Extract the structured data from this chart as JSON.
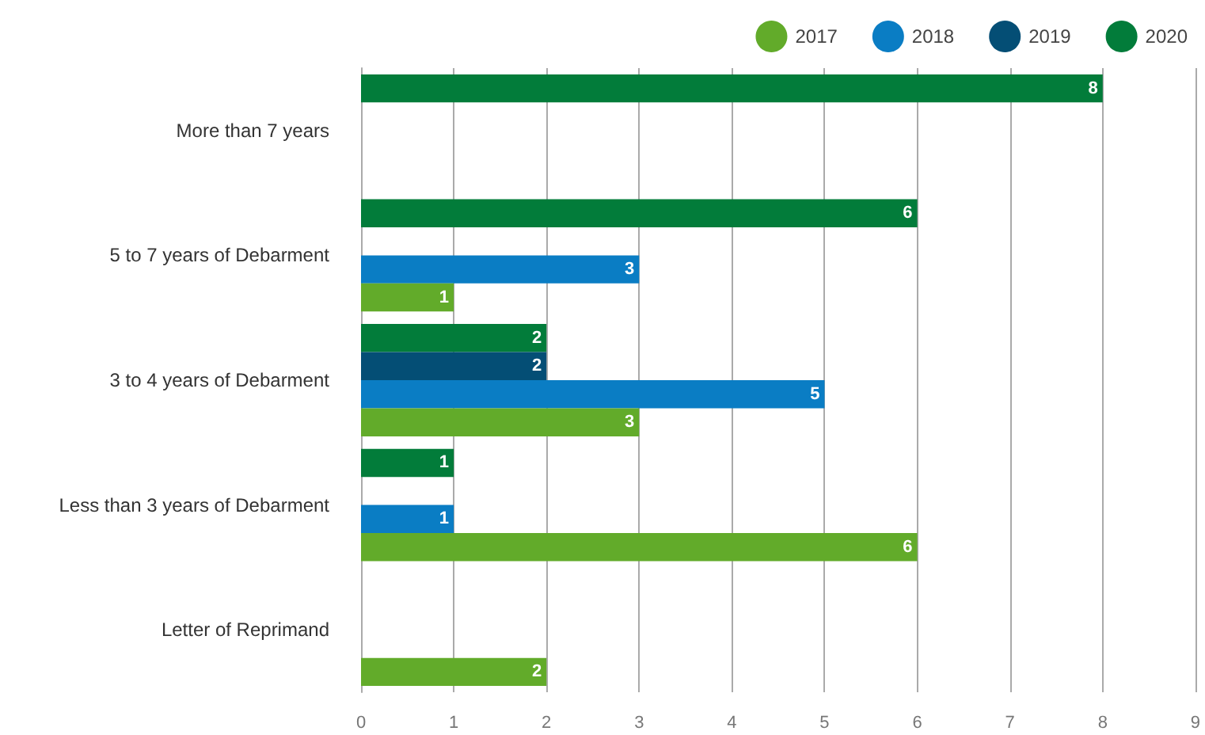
{
  "chart_data": {
    "type": "bar",
    "orientation": "horizontal",
    "categories": [
      "More than 7 years",
      "5 to 7 years of Debarment",
      "3 to 4 years of Debarment",
      "Less than 3 years of Debarment",
      "Letter of Reprimand"
    ],
    "series": [
      {
        "name": "2017",
        "color": "#62ab2a",
        "values": [
          null,
          1,
          3,
          6,
          2
        ]
      },
      {
        "name": "2018",
        "color": "#0a7dc4",
        "values": [
          null,
          3,
          5,
          1,
          null
        ]
      },
      {
        "name": "2019",
        "color": "#044e75",
        "values": [
          null,
          null,
          2,
          null,
          null
        ]
      },
      {
        "name": "2020",
        "color": "#027c3a",
        "values": [
          8,
          6,
          2,
          1,
          null
        ]
      }
    ],
    "xlim": [
      0,
      9
    ],
    "xticks": [
      0,
      1,
      2,
      3,
      4,
      5,
      6,
      7,
      8,
      9
    ],
    "grid": "x",
    "legend": "top right",
    "data_labels": true
  }
}
